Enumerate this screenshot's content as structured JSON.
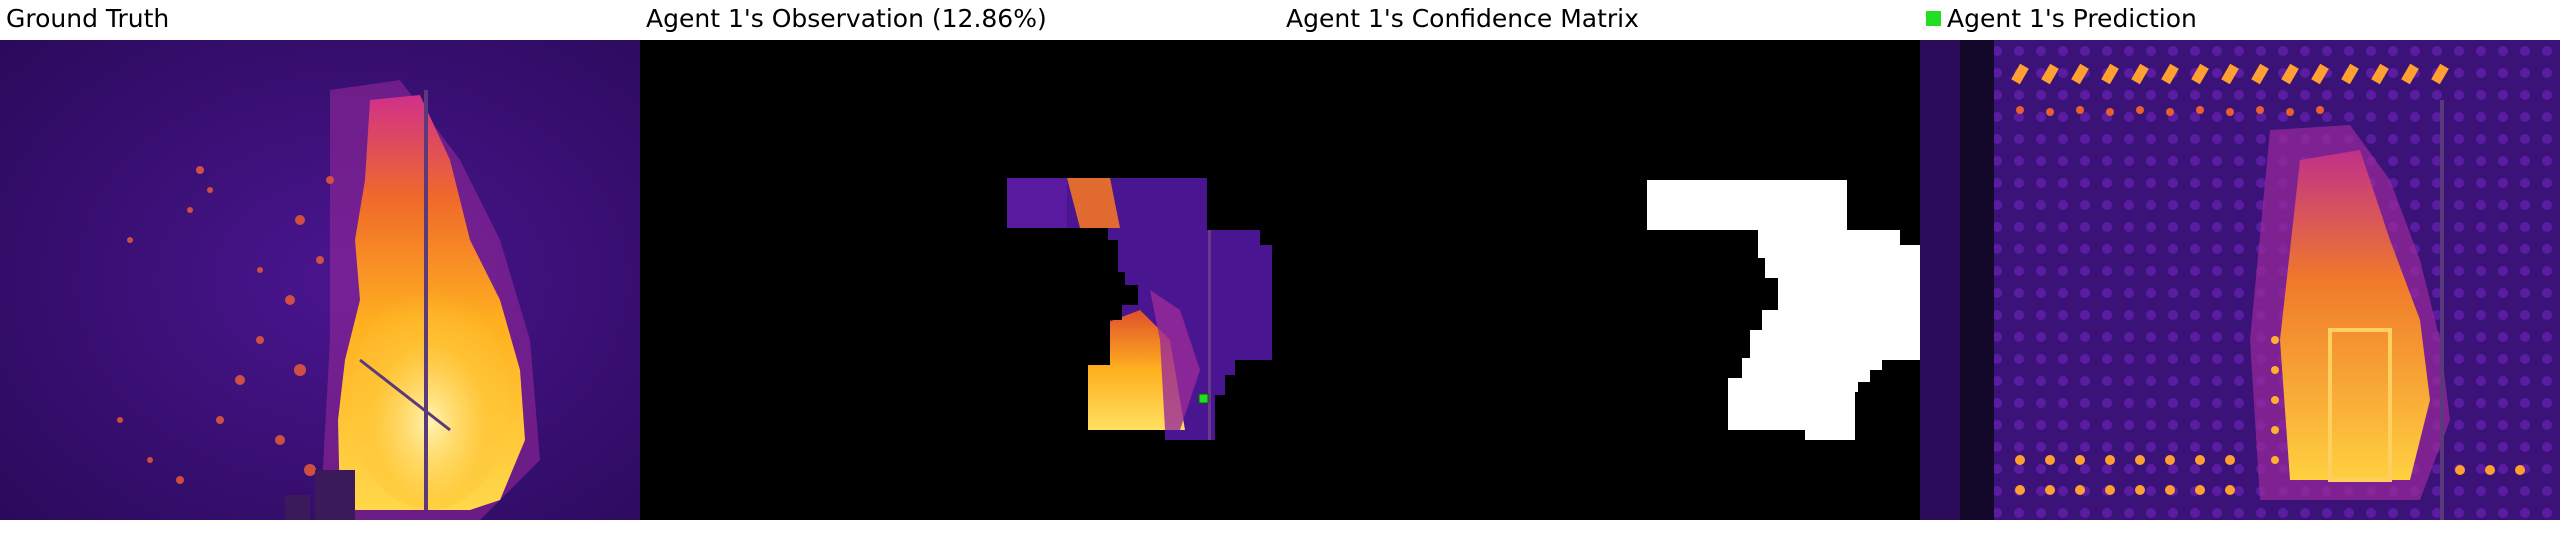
{
  "panels": {
    "ground_truth": {
      "title": "Ground Truth"
    },
    "observation": {
      "title": "Agent 1's Observation (12.86%)"
    },
    "confidence": {
      "title": "Agent 1's Confidence Matrix"
    },
    "prediction": {
      "title": "Agent 1's Prediction",
      "legend_color": "#22dd22"
    }
  },
  "colors": {
    "thermal_dark": "#2a0a5a",
    "thermal_mid": "#7a1fa0",
    "thermal_hot": "#ff9a1a",
    "thermal_white": "#fff2a0",
    "mask": "#ffffff",
    "background": "#000000",
    "agent_marker": "#22dd22"
  }
}
